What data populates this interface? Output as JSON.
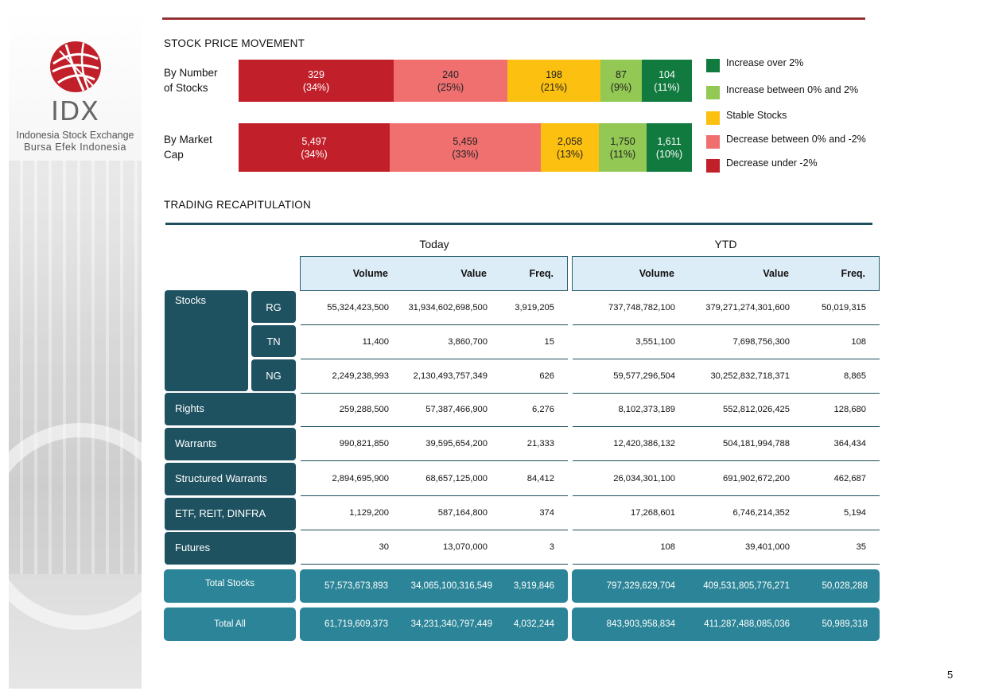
{
  "brand": {
    "logo_text": "IDX",
    "subtitle_line1": "Indonesia Stock Exchange",
    "subtitle_line2": "Bursa Efek Indonesia"
  },
  "stock_price_movement": {
    "title": "STOCK PRICE MOVEMENT",
    "rows": [
      {
        "label_line1": "By Number",
        "label_line2": "of Stocks",
        "segments": [
          {
            "value": "329",
            "pct": "(34%)",
            "color": "#c1202a"
          },
          {
            "value": "240",
            "pct": "(25%)",
            "color": "#f07070"
          },
          {
            "value": "198",
            "pct": "(21%)",
            "color": "#fcc010"
          },
          {
            "value": "87",
            "pct": "(9%)",
            "color": "#92c853"
          },
          {
            "value": "104",
            "pct": "(11%)",
            "color": "#117a3e"
          }
        ]
      },
      {
        "label_line1": "By Market",
        "label_line2": "Cap",
        "segments": [
          {
            "value": "5,497",
            "pct": "(34%)",
            "color": "#c1202a"
          },
          {
            "value": "5,459",
            "pct": "(33%)",
            "color": "#f07070"
          },
          {
            "value": "2,058",
            "pct": "(13%)",
            "color": "#fcc010"
          },
          {
            "value": "1,750",
            "pct": "(11%)",
            "color": "#92c853"
          },
          {
            "value": "1,611",
            "pct": "(10%)",
            "color": "#117a3e"
          }
        ]
      }
    ],
    "legend": [
      {
        "label": "Increase over 2%",
        "color": "#117a3e"
      },
      {
        "label": "Increase between 0% and 2%",
        "color": "#92c853"
      },
      {
        "label": "Stable Stocks",
        "color": "#fcc010"
      },
      {
        "label": "Decrease between 0% and -2%",
        "color": "#f07070"
      },
      {
        "label": "Decrease under -2%",
        "color": "#c1202a"
      }
    ]
  },
  "trading_recap": {
    "title": "TRADING RECAPITULATION",
    "group_today": "Today",
    "group_ytd": "YTD",
    "columns": {
      "volume": "Volume",
      "value": "Value",
      "freq": "Freq."
    },
    "stocks_label": "Stocks",
    "stocks_rows": [
      {
        "board": "RG",
        "t_vol": "55,324,423,500",
        "t_val": "31,934,602,698,500",
        "t_freq": "3,919,205",
        "y_vol": "737,748,782,100",
        "y_val": "379,271,274,301,600",
        "y_freq": "50,019,315"
      },
      {
        "board": "TN",
        "t_vol": "11,400",
        "t_val": "3,860,700",
        "t_freq": "15",
        "y_vol": "3,551,100",
        "y_val": "7,698,756,300",
        "y_freq": "108"
      },
      {
        "board": "NG",
        "t_vol": "2,249,238,993",
        "t_val": "2,130,493,757,349",
        "t_freq": "626",
        "y_vol": "59,577,296,504",
        "y_val": "30,252,832,718,371",
        "y_freq": "8,865"
      }
    ],
    "other_rows": [
      {
        "label": "Rights",
        "t_vol": "259,288,500",
        "t_val": "57,387,466,900",
        "t_freq": "6,276",
        "y_vol": "8,102,373,189",
        "y_val": "552,812,026,425",
        "y_freq": "128,680"
      },
      {
        "label": "Warrants",
        "t_vol": "990,821,850",
        "t_val": "39,595,654,200",
        "t_freq": "21,333",
        "y_vol": "12,420,386,132",
        "y_val": "504,181,994,788",
        "y_freq": "364,434"
      },
      {
        "label": "Structured Warrants",
        "t_vol": "2,894,695,900",
        "t_val": "68,657,125,000",
        "t_freq": "84,412",
        "y_vol": "26,034,301,100",
        "y_val": "691,902,672,200",
        "y_freq": "462,687"
      },
      {
        "label": "ETF, REIT, DINFRA",
        "t_vol": "1,129,200",
        "t_val": "587,164,800",
        "t_freq": "374",
        "y_vol": "17,268,601",
        "y_val": "6,746,214,352",
        "y_freq": "5,194"
      },
      {
        "label": "Futures",
        "t_vol": "30",
        "t_val": "13,070,000",
        "t_freq": "3",
        "y_vol": "108",
        "y_val": "39,401,000",
        "y_freq": "35"
      }
    ],
    "totals": [
      {
        "label": "Total Stocks",
        "t_vol": "57,573,673,893",
        "t_val": "34,065,100,316,549",
        "t_freq": "3,919,846",
        "y_vol": "797,329,629,704",
        "y_val": "409,531,805,776,271",
        "y_freq": "50,028,288"
      },
      {
        "label": "Total All",
        "t_vol": "61,719,609,373",
        "t_val": "34,231,340,797,449",
        "t_freq": "4,032,244",
        "y_vol": "843,903,958,834",
        "y_val": "411,287,488,085,036",
        "y_freq": "50,989,318"
      }
    ]
  },
  "page_number": "5"
}
